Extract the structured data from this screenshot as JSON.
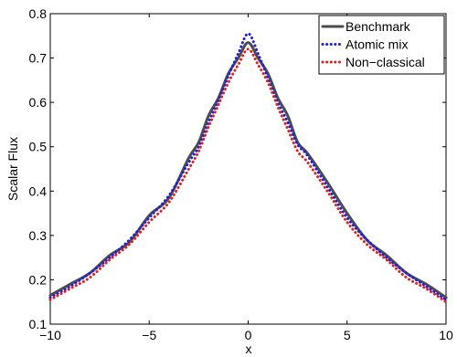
{
  "chart_data": {
    "type": "line",
    "xlabel": "x",
    "ylabel": "Scalar Flux",
    "xlim": [
      -10,
      10
    ],
    "ylim": [
      0.1,
      0.8
    ],
    "xticks": [
      "-10",
      "-5",
      "0",
      "5",
      "10"
    ],
    "yticks": [
      "0.1",
      "0.2",
      "0.3",
      "0.4",
      "0.5",
      "0.6",
      "0.7",
      "0.8"
    ],
    "xtick_values": [
      -10,
      -5,
      0,
      5,
      10
    ],
    "ytick_values": [
      0.1,
      0.2,
      0.3,
      0.4,
      0.5,
      0.6,
      0.7,
      0.8
    ],
    "grid": false,
    "legend_position": "top-right",
    "x": [
      -10,
      -9,
      -8,
      -7,
      -6,
      -5,
      -4,
      -3,
      -2.5,
      -2,
      -1.5,
      -1,
      -0.5,
      0,
      0.5,
      1,
      1.5,
      2,
      2.5,
      3,
      4,
      5,
      6,
      7,
      8,
      9,
      10
    ],
    "series": [
      {
        "name": "Benchmark",
        "color": "#4d4d4d",
        "style": "solid",
        "values": [
          0.165,
          0.19,
          0.215,
          0.255,
          0.285,
          0.345,
          0.385,
          0.475,
          0.51,
          0.57,
          0.61,
          0.665,
          0.7,
          0.735,
          0.7,
          0.665,
          0.61,
          0.57,
          0.51,
          0.485,
          0.42,
          0.35,
          0.29,
          0.255,
          0.215,
          0.19,
          0.16
        ]
      },
      {
        "name": "Atomic mix",
        "color": "#1f1fe0",
        "style": "dotted",
        "values": [
          0.16,
          0.185,
          0.215,
          0.25,
          0.29,
          0.34,
          0.39,
          0.465,
          0.5,
          0.555,
          0.605,
          0.66,
          0.71,
          0.755,
          0.71,
          0.655,
          0.6,
          0.555,
          0.505,
          0.48,
          0.41,
          0.34,
          0.29,
          0.25,
          0.215,
          0.185,
          0.155
        ]
      },
      {
        "name": "Non−classical",
        "color": "#e02020",
        "style": "dotted",
        "values": [
          0.155,
          0.18,
          0.205,
          0.245,
          0.28,
          0.33,
          0.375,
          0.45,
          0.49,
          0.545,
          0.595,
          0.645,
          0.685,
          0.72,
          0.685,
          0.645,
          0.59,
          0.54,
          0.49,
          0.465,
          0.4,
          0.33,
          0.28,
          0.245,
          0.205,
          0.18,
          0.15
        ]
      }
    ]
  }
}
